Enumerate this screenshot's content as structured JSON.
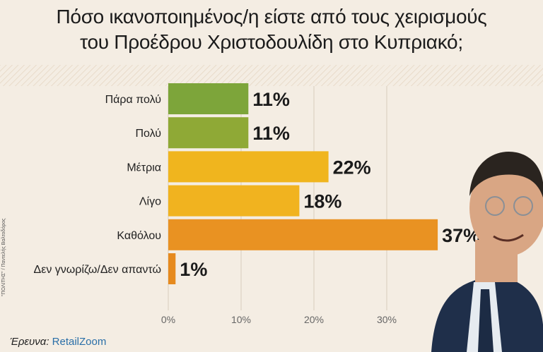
{
  "title_line1": "Πόσο ικανοποιημένος/η είστε από τους χειρισμούς",
  "title_line2": "του Προέδρου Χριστοδουλίδη στο Κυπριακό;",
  "source_label": "Έρευνα:",
  "source_brand": "RetailZoom",
  "photo_credit": "\"ΠΟΛΙΤΗΣ\" / Παντελής Βαλτοδόρος",
  "colors": {
    "background": "#f4ede3",
    "bar_green": "#7da53a",
    "bar_yellow": "#f0b51e",
    "bar_orange": "#e8911e"
  },
  "chart_data": {
    "type": "bar",
    "orientation": "horizontal",
    "categories": [
      "Πάρα πολύ",
      "Πολύ",
      "Μέτρια",
      "Λίγο",
      "Καθόλου",
      "Δεν γνωρίζω/Δεν απαντώ"
    ],
    "values": [
      11,
      11,
      22,
      18,
      37,
      1
    ],
    "value_labels": [
      "11%",
      "11%",
      "22%",
      "18%",
      "37%",
      "1%"
    ],
    "bar_colors": [
      "#7da53a",
      "#8fa936",
      "#f0b51e",
      "#f1b31f",
      "#e99222",
      "#e68a1e"
    ],
    "xticks": [
      0,
      10,
      20,
      30
    ],
    "xtick_labels": [
      "0%",
      "10%",
      "20%",
      "30%"
    ],
    "xlim": [
      0,
      40
    ],
    "grid": true
  }
}
